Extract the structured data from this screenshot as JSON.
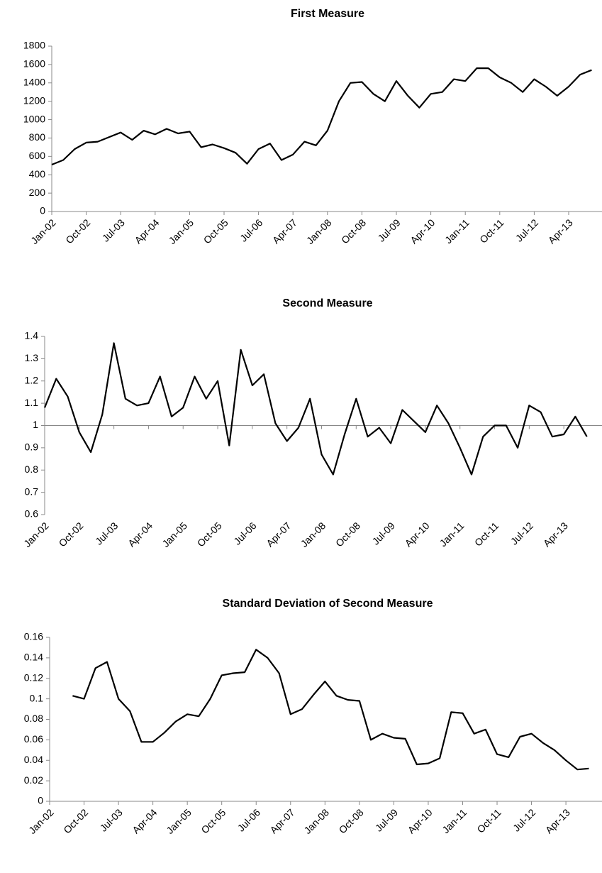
{
  "chart_data": [
    {
      "type": "line",
      "title": "First Measure",
      "categories": [
        "Jan-02",
        null,
        null,
        "Oct-02",
        null,
        null,
        "Jul-03",
        null,
        null,
        "Apr-04",
        null,
        null,
        "Jan-05",
        null,
        null,
        "Oct-05",
        null,
        null,
        "Jul-06",
        null,
        null,
        "Apr-07",
        null,
        null,
        "Jan-08",
        null,
        null,
        "Oct-08",
        null,
        null,
        "Jul-09",
        null,
        null,
        "Apr-10",
        null,
        null,
        "Jan-11",
        null,
        null,
        "Oct-11",
        null,
        null,
        "Jul-12",
        null,
        null,
        "Apr-13",
        null,
        null
      ],
      "series": [
        {
          "color": "#000000",
          "values": [
            510,
            560,
            680,
            750,
            760,
            810,
            860,
            780,
            880,
            840,
            900,
            850,
            870,
            700,
            730,
            690,
            640,
            520,
            680,
            740,
            560,
            620,
            760,
            720,
            880,
            1200,
            1400,
            1410,
            1280,
            1200,
            1420,
            1260,
            1130,
            1280,
            1300,
            1440,
            1420,
            1560,
            1560,
            1460,
            1400,
            1300,
            1440,
            1360,
            1260,
            1360,
            1490,
            1540
          ]
        }
      ],
      "ylim": [
        0,
        1800
      ],
      "yticks": [
        0,
        200,
        400,
        600,
        800,
        1000,
        1200,
        1400,
        1600,
        1800
      ]
    },
    {
      "type": "line",
      "title": "Second Measure",
      "categories": [
        "Jan-02",
        null,
        null,
        "Oct-02",
        null,
        null,
        "Jul-03",
        null,
        null,
        "Apr-04",
        null,
        null,
        "Jan-05",
        null,
        null,
        "Oct-05",
        null,
        null,
        "Jul-06",
        null,
        null,
        "Apr-07",
        null,
        null,
        "Jan-08",
        null,
        null,
        "Oct-08",
        null,
        null,
        "Jul-09",
        null,
        null,
        "Apr-10",
        null,
        null,
        "Jan-11",
        null,
        null,
        "Oct-11",
        null,
        null,
        "Jul-12",
        null,
        null,
        "Apr-13",
        null,
        null
      ],
      "series": [
        {
          "color": "#000000",
          "values": [
            1.08,
            1.21,
            1.13,
            0.97,
            0.88,
            1.05,
            1.37,
            1.12,
            1.09,
            1.1,
            1.22,
            1.04,
            1.08,
            1.22,
            1.12,
            1.2,
            0.91,
            1.34,
            1.18,
            1.23,
            1.01,
            0.93,
            0.99,
            1.12,
            0.87,
            0.78,
            0.96,
            1.12,
            0.95,
            0.99,
            0.92,
            1.07,
            1.02,
            0.97,
            1.09,
            1.01,
            0.9,
            0.78,
            0.95,
            1,
            1,
            0.9,
            1.09,
            1.06,
            0.95,
            0.96,
            1.04,
            0.95
          ]
        }
      ],
      "ylim": [
        0.6,
        1.4
      ],
      "yticks": [
        0.6,
        0.7,
        0.8,
        0.9,
        1,
        1.1,
        1.2,
        1.3,
        1.4
      ],
      "x_axis_crossing": 1
    },
    {
      "type": "line",
      "title": "Standard Deviation of Second Measure",
      "categories": [
        "Jan-02",
        null,
        null,
        "Oct-02",
        null,
        null,
        "Jul-03",
        null,
        null,
        "Apr-04",
        null,
        null,
        "Jan-05",
        null,
        null,
        "Oct-05",
        null,
        null,
        "Jul-06",
        null,
        null,
        "Apr-07",
        null,
        null,
        "Jan-08",
        null,
        null,
        "Oct-08",
        null,
        null,
        "Jul-09",
        null,
        null,
        "Apr-10",
        null,
        null,
        "Jan-11",
        null,
        null,
        "Oct-11",
        null,
        null,
        "Jul-12",
        null,
        null,
        "Apr-13",
        null,
        null
      ],
      "series": [
        {
          "color": "#000000",
          "values": [
            null,
            null,
            0.103,
            0.1,
            0.13,
            0.136,
            0.1,
            0.088,
            0.058,
            0.058,
            0.067,
            0.078,
            0.085,
            0.083,
            0.1,
            0.123,
            0.125,
            0.126,
            0.148,
            0.14,
            0.125,
            0.085,
            0.09,
            0.104,
            0.117,
            0.103,
            0.099,
            0.098,
            0.06,
            0.066,
            0.062,
            0.061,
            0.036,
            0.037,
            0.042,
            0.087,
            0.086,
            0.066,
            0.07,
            0.046,
            0.043,
            0.063,
            0.066,
            0.057,
            0.05,
            0.04,
            0.031,
            0.032
          ]
        }
      ],
      "ylim": [
        0,
        0.16
      ],
      "yticks": [
        0,
        0.02,
        0.04,
        0.06,
        0.08,
        0.1,
        0.12,
        0.14,
        0.16
      ]
    }
  ]
}
